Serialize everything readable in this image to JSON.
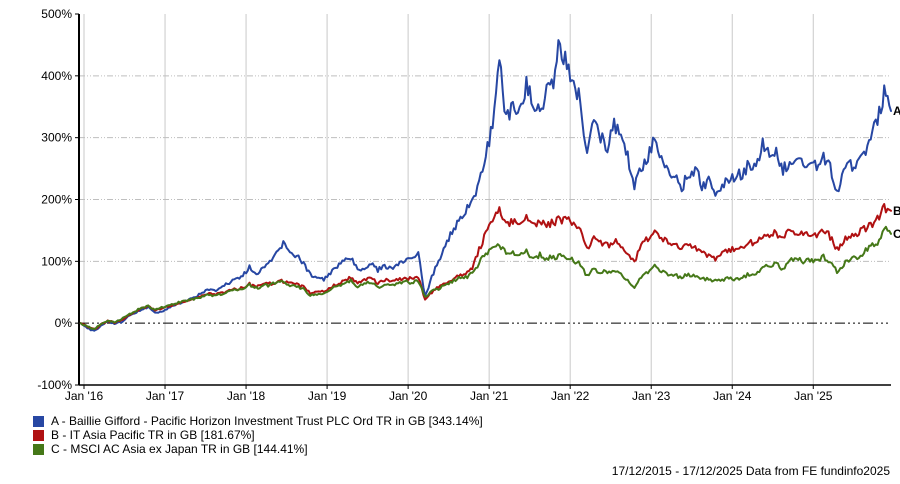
{
  "chart_data": {
    "type": "line",
    "title": "",
    "x_axis": {
      "tick_labels": [
        "Jan '16",
        "Jan '17",
        "Jan '18",
        "Jan '19",
        "Jan '20",
        "Jan '21",
        "Jan '22",
        "Jan '23",
        "Jan '24",
        "Jan '25"
      ],
      "start_date": "17/12/2015",
      "end_date": "17/12/2025"
    },
    "y_axis": {
      "unit": "%",
      "min": -100,
      "max": 500,
      "tick_step": 100,
      "tick_labels": [
        "500%",
        "400%",
        "300%",
        "200%",
        "100%",
        "0%",
        "-100%"
      ]
    },
    "grid": {
      "vertical": "solid",
      "horizontal": "dotted",
      "zero_line": "dash-dot"
    },
    "sampling": "monthly_from_2015-12_to_2025-12",
    "series": [
      {
        "id": "A",
        "name": "A - Baillie Gifford - Pacific Horizon Investment Trust PLC Ord TR in GB [343.14%]",
        "color": "#2747A3",
        "final_value": 343.14,
        "values": [
          0,
          -8,
          -13,
          -4,
          3,
          -1,
          2,
          10,
          16,
          22,
          26,
          16,
          19,
          24,
          30,
          33,
          38,
          42,
          50,
          55,
          53,
          58,
          66,
          70,
          76,
          90,
          80,
          92,
          98,
          112,
          128,
          112,
          108,
          98,
          78,
          72,
          70,
          80,
          92,
          100,
          105,
          86,
          90,
          98,
          86,
          92,
          88,
          96,
          102,
          106,
          112,
          43,
          75,
          100,
          125,
          148,
          165,
          180,
          200,
          228,
          270,
          320,
          425,
          330,
          355,
          340,
          390,
          355,
          345,
          375,
          395,
          455,
          415,
          400,
          355,
          270,
          340,
          300,
          285,
          320,
          300,
          270,
          225,
          255,
          265,
          308,
          270,
          250,
          240,
          218,
          240,
          248,
          222,
          228,
          212,
          222,
          232,
          238,
          242,
          258,
          252,
          288,
          270,
          282,
          246,
          262,
          270,
          258,
          262,
          255,
          268,
          250,
          213,
          248,
          255,
          262,
          275,
          295,
          330,
          372,
          343.14
        ]
      },
      {
        "id": "B",
        "name": "B - IT Asia Pacific TR in GB [181.67%]",
        "color": "#B01112",
        "final_value": 181.67,
        "values": [
          0,
          -6,
          -10,
          -2,
          4,
          1,
          5,
          12,
          18,
          24,
          27,
          21,
          24,
          27,
          31,
          34,
          37,
          40,
          44,
          47,
          46,
          49,
          53,
          55,
          58,
          63,
          58,
          62,
          64,
          66,
          68,
          64,
          62,
          58,
          48,
          50,
          52,
          58,
          64,
          68,
          73,
          65,
          70,
          72,
          66,
          70,
          67,
          70,
          74,
          71,
          74,
          37,
          50,
          58,
          64,
          70,
          76,
          80,
          90,
          118,
          145,
          168,
          183,
          160,
          165,
          162,
          168,
          160,
          165,
          158,
          163,
          168,
          166,
          163,
          150,
          118,
          135,
          128,
          125,
          132,
          128,
          112,
          100,
          125,
          138,
          148,
          138,
          132,
          130,
          122,
          126,
          120,
          112,
          110,
          105,
          112,
          118,
          120,
          122,
          130,
          128,
          140,
          138,
          147,
          136,
          150,
          148,
          145,
          146,
          144,
          151,
          140,
          118,
          135,
          140,
          146,
          152,
          158,
          170,
          188,
          181.67
        ]
      },
      {
        "id": "C",
        "name": "C - MSCI AC Asia ex Japan TR in GB [144.41%]",
        "color": "#457818",
        "final_value": 144.41,
        "values": [
          0,
          -6,
          -9,
          -1,
          4,
          1,
          6,
          13,
          19,
          25,
          28,
          22,
          25,
          28,
          32,
          35,
          37,
          40,
          43,
          46,
          45,
          48,
          52,
          54,
          57,
          62,
          57,
          60,
          62,
          65,
          67,
          62,
          59,
          55,
          45,
          47,
          48,
          54,
          60,
          64,
          68,
          59,
          64,
          65,
          58,
          62,
          60,
          64,
          68,
          65,
          68,
          42,
          52,
          56,
          62,
          68,
          73,
          74,
          80,
          98,
          112,
          120,
          126,
          112,
          116,
          112,
          115,
          105,
          110,
          104,
          107,
          108,
          104,
          102,
          96,
          76,
          88,
          82,
          83,
          85,
          82,
          68,
          57,
          75,
          82,
          91,
          84,
          80,
          78,
          74,
          78,
          76,
          72,
          71,
          68,
          70,
          72,
          71,
          74,
          80,
          78,
          90,
          92,
          96,
          88,
          102,
          107,
          100,
          102,
          100,
          107,
          98,
          83,
          96,
          102,
          108,
          115,
          122,
          132,
          155,
          144.41
        ]
      }
    ],
    "legend_position": "bottom-left"
  },
  "legend": {
    "items": [
      {
        "label": "A - Baillie Gifford - Pacific Horizon Investment Trust PLC Ord TR in GB [343.14%]",
        "color": "#2747A3"
      },
      {
        "label": "B - IT Asia Pacific TR in GB [181.67%]",
        "color": "#B01112"
      },
      {
        "label": "C - MSCI AC Asia ex Japan TR in GB [144.41%]",
        "color": "#457818"
      }
    ]
  },
  "footer": {
    "note": "17/12/2015 - 17/12/2025 Data from FE fundinfo2025"
  },
  "colors": {
    "grid_vertical": "#c9c9c9",
    "grid_horizontal": "#bfbfbf",
    "axis": "#000000",
    "zero_line": "#000000",
    "background": "#ffffff"
  }
}
